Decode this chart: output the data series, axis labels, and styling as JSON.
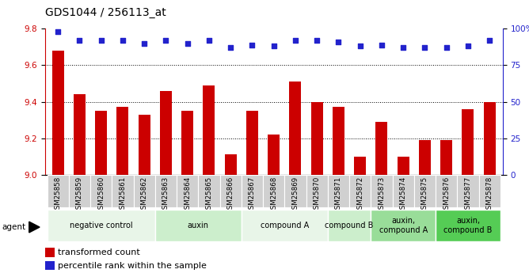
{
  "title": "GDS1044 / 256113_at",
  "samples": [
    "GSM25858",
    "GSM25859",
    "GSM25860",
    "GSM25861",
    "GSM25862",
    "GSM25863",
    "GSM25864",
    "GSM25865",
    "GSM25866",
    "GSM25867",
    "GSM25868",
    "GSM25869",
    "GSM25870",
    "GSM25871",
    "GSM25872",
    "GSM25873",
    "GSM25874",
    "GSM25875",
    "GSM25876",
    "GSM25877",
    "GSM25878"
  ],
  "bar_values": [
    9.68,
    9.44,
    9.35,
    9.37,
    9.33,
    9.46,
    9.35,
    9.49,
    9.11,
    9.35,
    9.22,
    9.51,
    9.4,
    9.37,
    9.1,
    9.29,
    9.1,
    9.19,
    9.19,
    9.36,
    9.4
  ],
  "dot_values": [
    98,
    92,
    92,
    92,
    90,
    92,
    90,
    92,
    87,
    89,
    88,
    92,
    92,
    91,
    88,
    89,
    87,
    87,
    87,
    88,
    92
  ],
  "ylim_left": [
    9.0,
    9.8
  ],
  "ylim_right": [
    0,
    100
  ],
  "yticks_left": [
    9.0,
    9.2,
    9.4,
    9.6,
    9.8
  ],
  "yticks_right": [
    0,
    25,
    50,
    75,
    100
  ],
  "ytick_labels_right": [
    "0",
    "25",
    "50",
    "75",
    "100%"
  ],
  "bar_color": "#cc0000",
  "dot_color": "#2222cc",
  "groups": [
    {
      "label": "negative control",
      "start": 0,
      "end": 4,
      "color": "#e8f5e8"
    },
    {
      "label": "auxin",
      "start": 5,
      "end": 8,
      "color": "#cceecc"
    },
    {
      "label": "compound A",
      "start": 9,
      "end": 12,
      "color": "#e8f5e8"
    },
    {
      "label": "compound B",
      "start": 13,
      "end": 14,
      "color": "#cceecc"
    },
    {
      "label": "auxin,\ncompound A",
      "start": 15,
      "end": 17,
      "color": "#99dd99"
    },
    {
      "label": "auxin,\ncompound B",
      "start": 18,
      "end": 20,
      "color": "#55cc55"
    }
  ],
  "legend_bar_label": "transformed count",
  "legend_dot_label": "percentile rank within the sample",
  "agent_label": "agent",
  "bar_color_label": "#cc0000",
  "dot_color_label": "#2222cc",
  "title_fontsize": 10,
  "tick_fontsize": 7.5,
  "label_fontsize": 8,
  "bar_width": 0.55
}
